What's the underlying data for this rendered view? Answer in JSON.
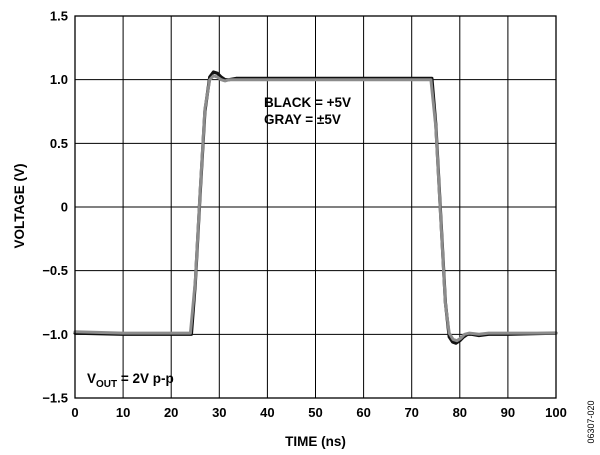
{
  "chart_data": {
    "type": "line",
    "xlabel": "TIME (ns)",
    "ylabel": "VOLTAGE (V)",
    "xlim": [
      0,
      100
    ],
    "ylim": [
      -1.5,
      1.5
    ],
    "grid": true,
    "x_ticks": [
      "0",
      "10",
      "20",
      "30",
      "40",
      "50",
      "60",
      "70",
      "80",
      "90",
      "100"
    ],
    "y_ticks": [
      "1.5",
      "1.0",
      "0.5",
      "0",
      "−0.5",
      "−1.0",
      "−1.5"
    ],
    "annotations": {
      "legend_black": "BLACK = +5V",
      "legend_gray": "GRAY = ±5V",
      "vout_v": "V",
      "vout_sub": "OUT",
      "vout_rest": " = 2V p-p"
    },
    "figure_id": "06307-020",
    "colors": {
      "black_series": "#111111",
      "gray_series": "#8c8c8c",
      "grid": "#000000"
    },
    "series": [
      {
        "color": "#111111",
        "x": [
          0,
          10,
          20,
          24.2,
          25,
          26,
          27,
          28,
          28.8,
          29.6,
          30.4,
          31.2,
          32,
          33.5,
          35,
          40,
          50,
          60,
          70,
          74.2,
          75,
          76,
          77,
          77.8,
          78.5,
          79.2,
          80,
          80.8,
          81.6,
          82.5,
          84,
          86,
          90,
          100
        ],
        "y": [
          -0.99,
          -1.0,
          -1.0,
          -1.0,
          -0.6,
          0.1,
          0.75,
          1.02,
          1.06,
          1.05,
          1.02,
          1.0,
          1.0,
          1.01,
          1.01,
          1.01,
          1.01,
          1.01,
          1.01,
          1.01,
          0.65,
          -0.05,
          -0.75,
          -1.02,
          -1.06,
          -1.07,
          -1.05,
          -1.02,
          -1.0,
          -1.0,
          -1.01,
          -1.0,
          -1.0,
          -0.99
        ]
      },
      {
        "color": "#8c8c8c",
        "x": [
          0,
          10,
          20,
          24.0,
          25,
          26,
          27,
          28,
          28.8,
          29.6,
          30.4,
          31.2,
          32,
          35,
          40,
          50,
          60,
          70,
          74.0,
          75,
          76,
          77,
          77.8,
          78.6,
          79.4,
          80.2,
          81,
          82,
          84,
          86,
          90,
          100
        ],
        "y": [
          -0.98,
          -0.99,
          -0.99,
          -0.99,
          -0.58,
          0.12,
          0.77,
          1.0,
          1.03,
          1.02,
          1.0,
          0.99,
          1.0,
          1.0,
          1.0,
          1.0,
          1.0,
          1.0,
          1.0,
          0.63,
          -0.07,
          -0.76,
          -0.99,
          -1.04,
          -1.05,
          -1.03,
          -1.0,
          -0.99,
          -1.0,
          -0.99,
          -0.99,
          -0.99
        ]
      }
    ]
  }
}
